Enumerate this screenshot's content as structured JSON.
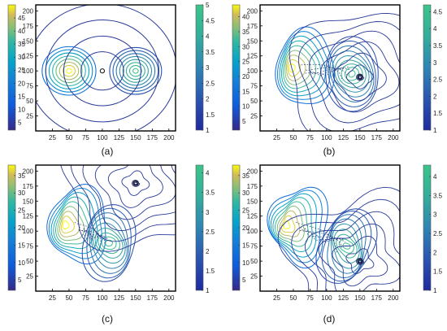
{
  "chart_data": [
    {
      "type": "contour",
      "caption": "(a)",
      "x_ticks": [
        "25",
        "50",
        "75",
        "100",
        "125",
        "150",
        "175",
        "200"
      ],
      "y_ticks": [
        "25",
        "50",
        "75",
        "100",
        "125",
        "150",
        "175",
        "200"
      ],
      "xlim": [
        0,
        210
      ],
      "ylim": [
        0,
        210
      ],
      "left_colorbar": {
        "ticks": [
          "5",
          "10",
          "15",
          "20",
          "25",
          "30",
          "35",
          "40",
          "45"
        ],
        "range": [
          2,
          50
        ],
        "colormap": "parula"
      },
      "right_colorbar": {
        "ticks": [
          "1",
          "1.5",
          "2",
          "2.5",
          "3",
          "3.5",
          "4",
          "4.5",
          "5"
        ],
        "range": [
          1,
          5
        ],
        "colormap": "winter"
      },
      "features": {
        "left_vortex": [
          50,
          100
        ],
        "right_vortex": [
          150,
          100
        ],
        "particle": [
          100,
          100
        ]
      }
    },
    {
      "type": "contour",
      "caption": "(b)",
      "x_ticks": [
        "25",
        "50",
        "75",
        "100",
        "125",
        "150",
        "175",
        "200"
      ],
      "y_ticks": [
        "25",
        "50",
        "75",
        "100",
        "125",
        "150",
        "175",
        "200"
      ],
      "xlim": [
        0,
        210
      ],
      "ylim": [
        0,
        210
      ],
      "left_colorbar": {
        "ticks": [
          "5",
          "10",
          "15",
          "20",
          "25",
          "30",
          "35",
          "40"
        ],
        "range": [
          2,
          44
        ],
        "colormap": "parula"
      },
      "right_colorbar": {
        "ticks": [
          "1",
          "1.5",
          "2",
          "2.5",
          "3",
          "3.5",
          "4",
          "4.5"
        ],
        "range": [
          1,
          4.7
        ],
        "colormap": "winter"
      },
      "features": {
        "left_vortex": [
          48,
          105
        ],
        "right_vortex": [
          138,
          95
        ],
        "particle": [
          150,
          90
        ]
      }
    },
    {
      "type": "contour",
      "caption": "(c)",
      "x_ticks": [
        "25",
        "50",
        "75",
        "100",
        "125",
        "150",
        "175",
        "200"
      ],
      "y_ticks": [
        "25",
        "50",
        "75",
        "100",
        "125",
        "150",
        "175",
        "200"
      ],
      "xlim": [
        0,
        210
      ],
      "ylim": [
        0,
        210
      ],
      "left_colorbar": {
        "ticks": [
          "5",
          "10",
          "15",
          "20",
          "25",
          "30",
          "35"
        ],
        "range": [
          2,
          38
        ],
        "colormap": "parula"
      },
      "right_colorbar": {
        "ticks": [
          "1",
          "1.5",
          "2",
          "2.5",
          "3",
          "3.5",
          "4"
        ],
        "range": [
          1,
          4.2
        ],
        "colormap": "winter"
      },
      "features": {
        "left_vortex": [
          45,
          110
        ],
        "right_vortex": [
          110,
          80
        ],
        "particle": [
          150,
          180
        ]
      }
    },
    {
      "type": "contour",
      "caption": "(d)",
      "x_ticks": [
        "25",
        "50",
        "75",
        "100",
        "125",
        "150",
        "175",
        "200"
      ],
      "y_ticks": [
        "25",
        "50",
        "75",
        "100",
        "125",
        "150",
        "175",
        "200"
      ],
      "xlim": [
        0,
        210
      ],
      "ylim": [
        0,
        210
      ],
      "left_colorbar": {
        "ticks": [
          "5",
          "10",
          "15",
          "20",
          "25",
          "30",
          "35"
        ],
        "range": [
          2,
          38
        ],
        "colormap": "parula"
      },
      "right_colorbar": {
        "ticks": [
          "1",
          "1.5",
          "2",
          "2.5",
          "3",
          "3.5",
          "4"
        ],
        "range": [
          1,
          4.3
        ],
        "colormap": "winter"
      },
      "features": {
        "left_vortex": [
          40,
          110
        ],
        "right_vortex": [
          130,
          75
        ],
        "particle": [
          150,
          50
        ]
      }
    }
  ]
}
